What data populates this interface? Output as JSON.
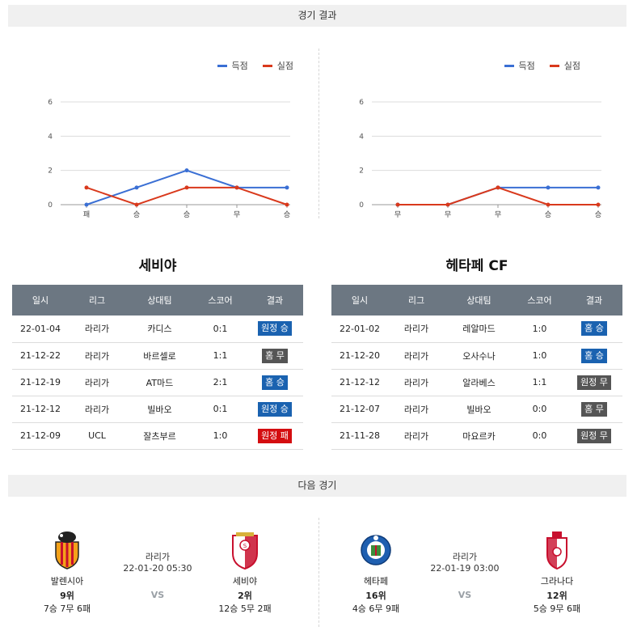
{
  "header": {
    "results_title": "경기 결과",
    "next_title": "다음 경기"
  },
  "legend": {
    "scored_label": "득점",
    "conceded_label": "실점",
    "scored_color": "#3a6fd4",
    "conceded_color": "#d9391c"
  },
  "chart_data": [
    {
      "type": "line",
      "categories": [
        "패",
        "승",
        "승",
        "무",
        "승"
      ],
      "ylim": [
        0,
        6
      ],
      "yticks": [
        0,
        2,
        4,
        6
      ],
      "series": [
        {
          "name": "득점",
          "values": [
            0,
            1,
            2,
            1,
            1
          ]
        },
        {
          "name": "실점",
          "values": [
            1,
            0,
            1,
            1,
            0
          ]
        }
      ]
    },
    {
      "type": "line",
      "categories": [
        "무",
        "무",
        "무",
        "승",
        "승"
      ],
      "ylim": [
        0,
        6
      ],
      "yticks": [
        0,
        2,
        4,
        6
      ],
      "series": [
        {
          "name": "득점",
          "values": [
            0,
            0,
            1,
            1,
            1
          ]
        },
        {
          "name": "실점",
          "values": [
            0,
            0,
            1,
            0,
            0
          ]
        }
      ]
    }
  ],
  "columns": [
    "일시",
    "리그",
    "상대팀",
    "스코어",
    "결과"
  ],
  "teams": [
    {
      "name": "세비야",
      "rows": [
        {
          "date": "22-01-04",
          "league": "라리가",
          "opponent": "카디스",
          "score": "0:1",
          "result": "원정 승",
          "type": "win"
        },
        {
          "date": "21-12-22",
          "league": "라리가",
          "opponent": "바르셀로",
          "score": "1:1",
          "result": "홈 무",
          "type": "draw"
        },
        {
          "date": "21-12-19",
          "league": "라리가",
          "opponent": "AT마드",
          "score": "2:1",
          "result": "홈 승",
          "type": "win"
        },
        {
          "date": "21-12-12",
          "league": "라리가",
          "opponent": "빌바오",
          "score": "0:1",
          "result": "원정 승",
          "type": "win"
        },
        {
          "date": "21-12-09",
          "league": "UCL",
          "opponent": "잘츠부르",
          "score": "1:0",
          "result": "원정 패",
          "type": "loss"
        }
      ]
    },
    {
      "name": "헤타페 CF",
      "rows": [
        {
          "date": "22-01-02",
          "league": "라리가",
          "opponent": "레알마드",
          "score": "1:0",
          "result": "홈 승",
          "type": "win"
        },
        {
          "date": "21-12-20",
          "league": "라리가",
          "opponent": "오사수나",
          "score": "1:0",
          "result": "홈 승",
          "type": "win"
        },
        {
          "date": "21-12-12",
          "league": "라리가",
          "opponent": "알라베스",
          "score": "1:1",
          "result": "원정 무",
          "type": "draw"
        },
        {
          "date": "21-12-07",
          "league": "라리가",
          "opponent": "빌바오",
          "score": "0:0",
          "result": "홈 무",
          "type": "draw"
        },
        {
          "date": "21-11-28",
          "league": "라리가",
          "opponent": "마요르카",
          "score": "0:0",
          "result": "원정 무",
          "type": "draw"
        }
      ]
    }
  ],
  "next_matches": [
    {
      "league": "라리가",
      "datetime": "22-01-20 05:30",
      "vs": "VS",
      "home": {
        "name": "발렌시아",
        "rank": "9위",
        "record": "7승 7무 6패",
        "logo": "valencia-crest"
      },
      "away": {
        "name": "세비야",
        "rank": "2위",
        "record": "12승 5무 2패",
        "logo": "sevilla-crest"
      }
    },
    {
      "league": "라리가",
      "datetime": "22-01-19 03:00",
      "vs": "VS",
      "home": {
        "name": "헤타페",
        "rank": "16위",
        "record": "4승 6무 9패",
        "logo": "getafe-crest"
      },
      "away": {
        "name": "그라나다",
        "rank": "12위",
        "record": "5승 9무 6패",
        "logo": "granada-crest"
      }
    }
  ]
}
